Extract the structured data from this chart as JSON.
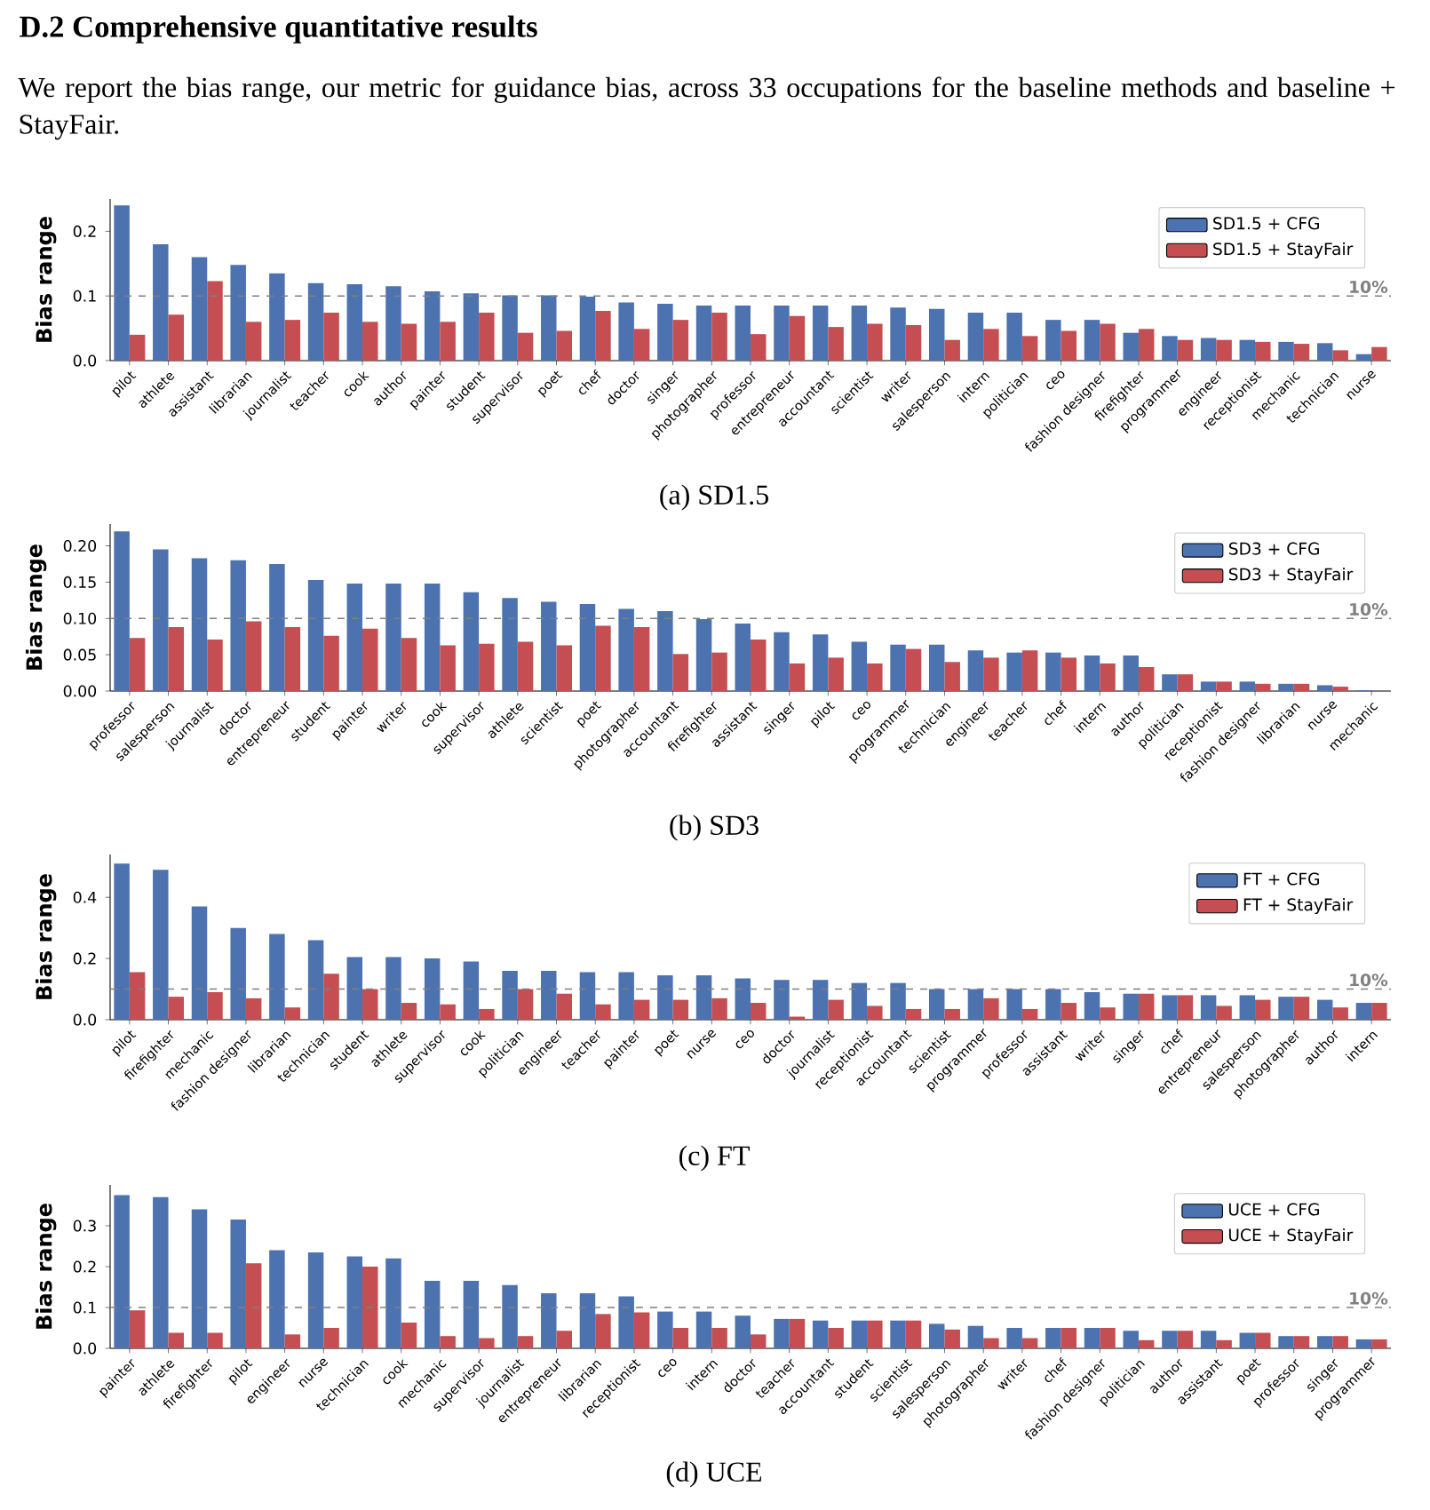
{
  "chart_data": [
    {
      "type": "bar",
      "title": "(a) SD1.5",
      "ylabel": "Bias range",
      "annotations": [
        "D.2 Comprehensive quantitative results",
        "We report the bias range, our metric for guidance bias, across 33 occupations for the baseline methods and baseline + StayFair."
      ],
      "categories": [
        "pilot",
        "athlete",
        "assistant",
        "librarian",
        "journalist",
        "teacher",
        "cook",
        "author",
        "painter",
        "student",
        "supervisor",
        "poet",
        "chef",
        "doctor",
        "singer",
        "photographer",
        "professor",
        "entrepreneur",
        "accountant",
        "scientist",
        "writer",
        "salesperson",
        "intern",
        "politician",
        "ceo",
        "fashion designer",
        "firefighter",
        "programmer",
        "engineer",
        "receptionist",
        "mechanic",
        "technician",
        "nurse"
      ],
      "series": [
        {
          "name": "SD1.5 + CFG",
          "color": "#4c72b0",
          "values": [
            0.24,
            0.18,
            0.16,
            0.148,
            0.135,
            0.12,
            0.118,
            0.115,
            0.107,
            0.104,
            0.101,
            0.101,
            0.099,
            0.09,
            0.088,
            0.085,
            0.085,
            0.085,
            0.085,
            0.085,
            0.082,
            0.08,
            0.074,
            0.074,
            0.063,
            0.063,
            0.043,
            0.038,
            0.035,
            0.032,
            0.029,
            0.027,
            0.01
          ]
        },
        {
          "name": "SD1.5 + StayFair",
          "color": "#c44e52",
          "values": [
            0.04,
            0.071,
            0.123,
            0.06,
            0.063,
            0.074,
            0.06,
            0.057,
            0.06,
            0.074,
            0.043,
            0.046,
            0.077,
            0.049,
            0.063,
            0.074,
            0.041,
            0.069,
            0.052,
            0.057,
            0.055,
            0.032,
            0.049,
            0.038,
            0.046,
            0.057,
            0.049,
            0.032,
            0.032,
            0.029,
            0.026,
            0.016,
            0.021
          ]
        }
      ],
      "ylim": [
        0,
        0.25
      ],
      "yticks": [
        {
          "value": 0,
          "label": "0.0"
        },
        0.1,
        0.2
      ],
      "legend": "top right",
      "ref_lines": [
        {
          "axis": "y",
          "value": 0.1,
          "label": "10%",
          "color": "#808080",
          "line_style": "dashed"
        }
      ]
    },
    {
      "type": "bar",
      "title": "(b) SD3",
      "ylabel": "Bias range",
      "categories": [
        "professor",
        "salesperson",
        "journalist",
        "doctor",
        "entrepreneur",
        "student",
        "painter",
        "writer",
        "cook",
        "supervisor",
        "athlete",
        "scientist",
        "poet",
        "photographer",
        "accountant",
        "firefighter",
        "assistant",
        "singer",
        "pilot",
        "ceo",
        "programmer",
        "technician",
        "engineer",
        "teacher",
        "chef",
        "intern",
        "author",
        "politician",
        "receptionist",
        "fashion designer",
        "librarian",
        "nurse",
        "mechanic"
      ],
      "series": [
        {
          "name": "SD3 + CFG",
          "color": "#4c72b0",
          "values": [
            0.22,
            0.195,
            0.183,
            0.18,
            0.175,
            0.153,
            0.148,
            0.148,
            0.148,
            0.136,
            0.128,
            0.123,
            0.12,
            0.113,
            0.11,
            0.099,
            0.093,
            0.081,
            0.078,
            0.068,
            0.064,
            0.064,
            0.056,
            0.053,
            0.053,
            0.049,
            0.049,
            0.023,
            0.013,
            0.013,
            0.01,
            0.008,
            0.001
          ]
        },
        {
          "name": "SD3 + StayFair",
          "color": "#c44e52",
          "values": [
            0.073,
            0.088,
            0.071,
            0.096,
            0.088,
            0.076,
            0.086,
            0.073,
            0.063,
            0.065,
            0.068,
            0.063,
            0.09,
            0.088,
            0.051,
            0.053,
            0.071,
            0.038,
            0.046,
            0.038,
            0.058,
            0.04,
            0.046,
            0.056,
            0.046,
            0.038,
            0.033,
            0.023,
            0.013,
            0.01,
            0.01,
            0.006,
            0.0
          ]
        }
      ],
      "ylim": [
        0,
        0.23
      ],
      "yticks": [
        {
          "value": 0,
          "label": "0.00"
        },
        0.05,
        {
          "value": 0.1,
          "label": "0.10"
        },
        0.15,
        {
          "value": 0.2,
          "label": "0.20"
        }
      ],
      "legend": "top right",
      "ref_lines": [
        {
          "axis": "y",
          "value": 0.1,
          "label": "10%",
          "color": "#808080",
          "line_style": "dashed"
        }
      ]
    },
    {
      "type": "bar",
      "title": "(c) FT",
      "ylabel": "Bias range",
      "categories": [
        "pilot",
        "firefighter",
        "mechanic",
        "fashion designer",
        "librarian",
        "technician",
        "student",
        "athlete",
        "supervisor",
        "cook",
        "politician",
        "engineer",
        "teacher",
        "painter",
        "poet",
        "nurse",
        "ceo",
        "doctor",
        "journalist",
        "receptionist",
        "accountant",
        "scientist",
        "programmer",
        "professor",
        "assistant",
        "writer",
        "singer",
        "chef",
        "entrepreneur",
        "salesperson",
        "photographer",
        "author",
        "intern"
      ],
      "series": [
        {
          "name": "FT + CFG",
          "color": "#4c72b0",
          "values": [
            0.51,
            0.49,
            0.37,
            0.3,
            0.28,
            0.26,
            0.205,
            0.205,
            0.2,
            0.19,
            0.16,
            0.16,
            0.155,
            0.155,
            0.145,
            0.145,
            0.135,
            0.13,
            0.13,
            0.12,
            0.12,
            0.1,
            0.1,
            0.1,
            0.1,
            0.09,
            0.085,
            0.08,
            0.08,
            0.08,
            0.075,
            0.065,
            0.055
          ]
        },
        {
          "name": "FT + StayFair",
          "color": "#c44e52",
          "values": [
            0.155,
            0.075,
            0.09,
            0.07,
            0.04,
            0.15,
            0.1,
            0.055,
            0.05,
            0.035,
            0.1,
            0.085,
            0.05,
            0.065,
            0.065,
            0.07,
            0.055,
            0.01,
            0.065,
            0.045,
            0.035,
            0.035,
            0.07,
            0.035,
            0.055,
            0.04,
            0.085,
            0.08,
            0.045,
            0.065,
            0.075,
            0.04,
            0.055
          ]
        }
      ],
      "ylim": [
        0,
        0.54
      ],
      "yticks": [
        {
          "value": 0,
          "label": "0.0"
        },
        0.2,
        0.4
      ],
      "legend": "top right",
      "ref_lines": [
        {
          "axis": "y",
          "value": 0.1,
          "label": "10%",
          "color": "#808080",
          "line_style": "dashed"
        }
      ]
    },
    {
      "type": "bar",
      "title": "(d) UCE",
      "ylabel": "Bias range",
      "categories": [
        "painter",
        "athlete",
        "firefighter",
        "pilot",
        "engineer",
        "nurse",
        "technician",
        "cook",
        "mechanic",
        "supervisor",
        "journalist",
        "entrepreneur",
        "librarian",
        "receptionist",
        "ceo",
        "intern",
        "doctor",
        "teacher",
        "accountant",
        "student",
        "scientist",
        "salesperson",
        "photographer",
        "writer",
        "chef",
        "fashion designer",
        "politician",
        "author",
        "assistant",
        "poet",
        "professor",
        "singer",
        "programmer"
      ],
      "series": [
        {
          "name": "UCE + CFG",
          "color": "#4c72b0",
          "values": [
            0.375,
            0.37,
            0.34,
            0.315,
            0.24,
            0.235,
            0.225,
            0.22,
            0.165,
            0.165,
            0.155,
            0.135,
            0.135,
            0.127,
            0.09,
            0.09,
            0.08,
            0.072,
            0.068,
            0.068,
            0.068,
            0.06,
            0.055,
            0.05,
            0.05,
            0.05,
            0.043,
            0.043,
            0.043,
            0.038,
            0.03,
            0.03,
            0.022
          ]
        },
        {
          "name": "UCE + StayFair",
          "color": "#c44e52",
          "values": [
            0.093,
            0.038,
            0.038,
            0.208,
            0.034,
            0.05,
            0.2,
            0.063,
            0.03,
            0.025,
            0.03,
            0.043,
            0.084,
            0.088,
            0.05,
            0.05,
            0.034,
            0.072,
            0.05,
            0.068,
            0.068,
            0.046,
            0.025,
            0.025,
            0.05,
            0.05,
            0.02,
            0.043,
            0.02,
            0.038,
            0.03,
            0.03,
            0.022
          ]
        }
      ],
      "ylim": [
        0,
        0.4
      ],
      "yticks": [
        {
          "value": 0,
          "label": "0.0"
        },
        0.1,
        0.2,
        0.3
      ],
      "legend": "top right",
      "ref_lines": [
        {
          "axis": "y",
          "value": 0.1,
          "label": "10%",
          "color": "#808080",
          "line_style": "dashed"
        }
      ]
    }
  ]
}
